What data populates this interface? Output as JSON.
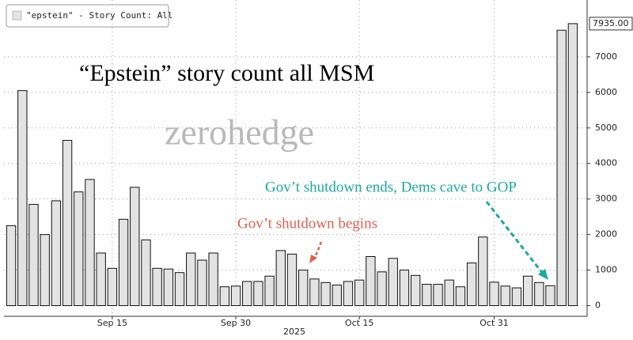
{
  "chart_data": {
    "type": "bar",
    "legend_label": "\"epstein\" - Story Count: All",
    "annotations": {
      "headline": "“Epstein” story count all MSM",
      "watermark": "zerohedge",
      "shutdown_begins": "Gov’t shutdown begins",
      "shutdown_ends": "Gov’t shutdown ends, Dems cave to GOP"
    },
    "x_label": "2025",
    "categories": [
      null,
      null,
      null,
      null,
      null,
      null,
      null,
      null,
      null,
      "Sep 15",
      null,
      null,
      null,
      null,
      null,
      null,
      null,
      null,
      null,
      null,
      "Sep 30",
      null,
      null,
      null,
      null,
      null,
      null,
      null,
      null,
      null,
      null,
      "Oct 15",
      null,
      null,
      null,
      null,
      null,
      null,
      null,
      null,
      null,
      null,
      null,
      "Oct 31",
      null,
      null,
      null,
      null,
      null,
      null,
      null
    ],
    "values": [
      2250,
      6050,
      2850,
      2000,
      2950,
      4650,
      3200,
      3550,
      1480,
      1050,
      2430,
      3330,
      1850,
      1050,
      1030,
      930,
      1480,
      1280,
      1480,
      530,
      550,
      680,
      680,
      830,
      1550,
      1450,
      1000,
      750,
      650,
      580,
      680,
      720,
      1380,
      950,
      1330,
      1000,
      850,
      600,
      600,
      720,
      530,
      1200,
      1930,
      660,
      550,
      500,
      830,
      650,
      560,
      7750,
      7935
    ],
    "last_value_label": "7935.00",
    "color": "#e3e3e3",
    "ylim": [
      -300,
      8600
    ],
    "yticks": [
      0,
      1000,
      2000,
      3000,
      4000,
      5000,
      6000,
      7000
    ],
    "grid": true
  }
}
